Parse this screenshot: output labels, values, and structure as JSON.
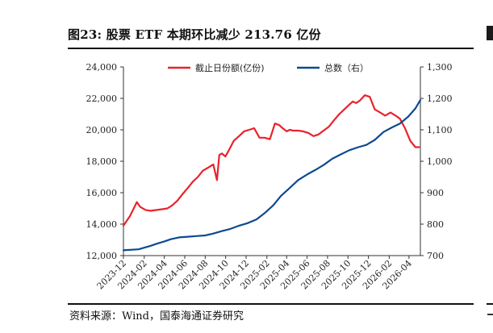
{
  "title": "图23:  股票 ETF 本期环比减少 213.76 亿份",
  "source": "资料来源：Wind，国泰海通证券研究",
  "colors": {
    "series_left": "#e8232b",
    "series_right": "#0e4a8f",
    "axis": "#333333"
  },
  "chart_data": {
    "type": "line",
    "title": "",
    "legend_position": "top-center",
    "grid": false,
    "x_tick_labels": [
      "2023-12",
      "2024-02",
      "2024-04",
      "2024-06",
      "2024-08",
      "2024-10",
      "2024-12",
      "2025-02",
      "2025-04",
      "2025-06",
      "2025-08",
      "2025-10",
      "2025-12",
      "2026-02",
      "2026-04"
    ],
    "y_left": {
      "ylim": [
        12000,
        24000
      ],
      "ticks": [
        "12,000",
        "14,000",
        "16,000",
        "18,000",
        "20,000",
        "22,000",
        "24,000"
      ]
    },
    "y_right": {
      "ylim": [
        700,
        1300
      ],
      "ticks": [
        "700",
        "800",
        "900",
        "1,000",
        "1,100",
        "1,200",
        "1,300"
      ]
    },
    "series": [
      {
        "name": "截止日份额(亿份)",
        "axis": "left",
        "x": [
          "2023-12-01",
          "2023-12-20",
          "2024-01-10",
          "2024-01-20",
          "2024-02-05",
          "2024-02-20",
          "2024-03-10",
          "2024-03-25",
          "2024-04-10",
          "2024-04-25",
          "2024-05-10",
          "2024-05-25",
          "2024-06-10",
          "2024-06-25",
          "2024-07-10",
          "2024-07-25",
          "2024-08-10",
          "2024-08-25",
          "2024-09-05",
          "2024-09-12",
          "2024-09-20",
          "2024-09-30",
          "2024-10-08",
          "2024-10-25",
          "2024-11-10",
          "2024-11-25",
          "2024-12-10",
          "2024-12-25",
          "2025-01-10",
          "2025-01-25",
          "2025-02-10",
          "2025-02-25",
          "2025-03-10",
          "2025-03-20",
          "2025-04-01",
          "2025-04-10",
          "2025-04-20",
          "2025-05-05",
          "2025-05-20",
          "2025-06-05",
          "2025-06-20",
          "2025-07-05",
          "2025-07-20",
          "2025-08-05",
          "2025-08-20",
          "2025-09-05",
          "2025-09-20",
          "2025-10-05",
          "2025-10-15",
          "2025-10-25",
          "2025-11-05",
          "2025-11-20",
          "2025-12-05",
          "2025-12-20",
          "2026-01-05",
          "2026-01-20",
          "2026-02-05",
          "2026-02-20",
          "2026-03-05",
          "2026-03-20",
          "2026-04-05",
          "2026-04-20",
          "2026-05-01"
        ],
        "values": [
          13900,
          14500,
          15400,
          15100,
          14900,
          14850,
          14900,
          14950,
          15000,
          15200,
          15500,
          15900,
          16300,
          16700,
          17000,
          17400,
          17600,
          17800,
          16800,
          18400,
          18500,
          18300,
          18600,
          19300,
          19600,
          19900,
          20000,
          20100,
          19500,
          19500,
          19400,
          20400,
          20300,
          20100,
          19900,
          20000,
          19950,
          19950,
          19900,
          19800,
          19600,
          19700,
          19950,
          20200,
          20600,
          21000,
          21300,
          21600,
          21800,
          21700,
          21850,
          22200,
          22100,
          21300,
          21100,
          20900,
          21100,
          20900,
          20700,
          20100,
          19300,
          18900,
          18900
        ]
      },
      {
        "name": "总数（右）",
        "axis": "right",
        "x": [
          "2023-12-01",
          "2024-01-15",
          "2024-02-20",
          "2024-03-10",
          "2024-04-01",
          "2024-04-20",
          "2024-05-15",
          "2024-06-10",
          "2024-07-05",
          "2024-08-01",
          "2024-08-25",
          "2024-09-20",
          "2024-10-15",
          "2024-11-10",
          "2024-12-05",
          "2025-01-01",
          "2025-01-25",
          "2025-02-20",
          "2025-03-15",
          "2025-04-10",
          "2025-05-05",
          "2025-06-01",
          "2025-06-25",
          "2025-07-20",
          "2025-08-15",
          "2025-09-10",
          "2025-10-05",
          "2025-11-01",
          "2025-11-25",
          "2025-12-20",
          "2026-01-15",
          "2026-02-10",
          "2026-03-05",
          "2026-03-30",
          "2026-04-20",
          "2026-05-05"
        ],
        "values": [
          717,
          720,
          731,
          738,
          745,
          752,
          758,
          760,
          762,
          764,
          770,
          778,
          785,
          795,
          803,
          815,
          835,
          860,
          890,
          915,
          940,
          958,
          972,
          988,
          1008,
          1022,
          1035,
          1045,
          1052,
          1068,
          1093,
          1108,
          1120,
          1142,
          1168,
          1195
        ]
      }
    ]
  }
}
